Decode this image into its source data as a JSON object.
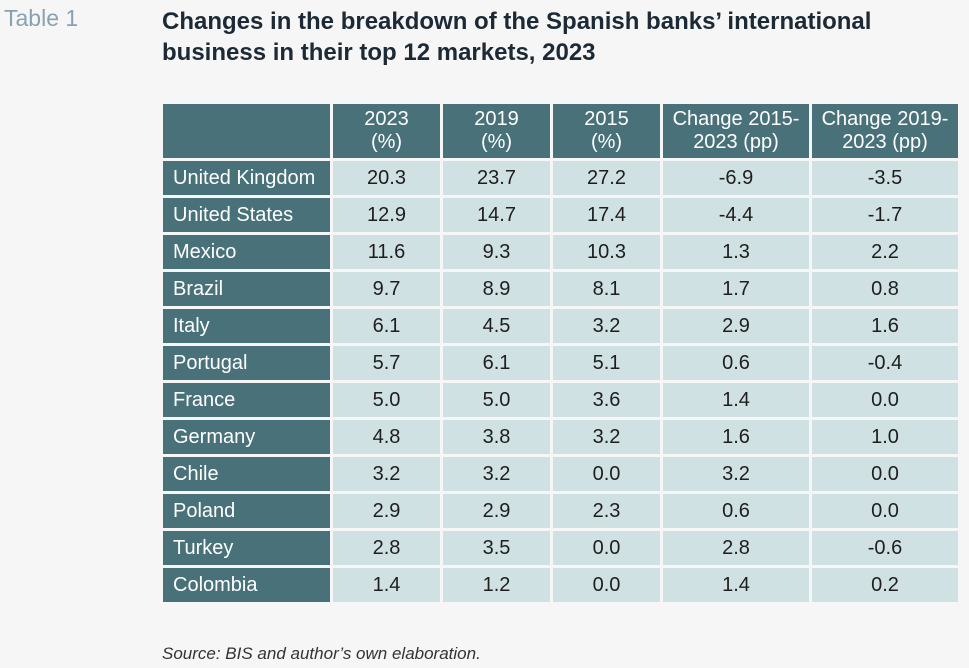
{
  "table_tag": "Table 1",
  "title": "Changes in the breakdown of the Spanish banks’ international business in their top 12 markets, 2023",
  "columns": [
    {
      "line1": "2023",
      "line2": "(%)"
    },
    {
      "line1": "2019",
      "line2": "(%)"
    },
    {
      "line1": "2015",
      "line2": "(%)"
    },
    {
      "line1": "Change 2015-",
      "line2": "2023 (pp)"
    },
    {
      "line1": "Change 2019-",
      "line2": "2023 (pp)"
    }
  ],
  "rows": [
    {
      "country": "United Kingdom",
      "v2023": "20.3",
      "v2019": "23.7",
      "v2015": "27.2",
      "ch1": "-6.9",
      "ch2": "-3.5"
    },
    {
      "country": "United States",
      "v2023": "12.9",
      "v2019": "14.7",
      "v2015": "17.4",
      "ch1": "-4.4",
      "ch2": "-1.7"
    },
    {
      "country": "Mexico",
      "v2023": "11.6",
      "v2019": "9.3",
      "v2015": "10.3",
      "ch1": "1.3",
      "ch2": "2.2"
    },
    {
      "country": "Brazil",
      "v2023": "9.7",
      "v2019": "8.9",
      "v2015": "8.1",
      "ch1": "1.7",
      "ch2": "0.8"
    },
    {
      "country": "Italy",
      "v2023": "6.1",
      "v2019": "4.5",
      "v2015": "3.2",
      "ch1": "2.9",
      "ch2": "1.6"
    },
    {
      "country": "Portugal",
      "v2023": "5.7",
      "v2019": "6.1",
      "v2015": "5.1",
      "ch1": "0.6",
      "ch2": "-0.4"
    },
    {
      "country": "France",
      "v2023": "5.0",
      "v2019": "5.0",
      "v2015": "3.6",
      "ch1": "1.4",
      "ch2": "0.0"
    },
    {
      "country": "Germany",
      "v2023": "4.8",
      "v2019": "3.8",
      "v2015": "3.2",
      "ch1": "1.6",
      "ch2": "1.0"
    },
    {
      "country": "Chile",
      "v2023": "3.2",
      "v2019": "3.2",
      "v2015": "0.0",
      "ch1": "3.2",
      "ch2": "0.0"
    },
    {
      "country": "Poland",
      "v2023": "2.9",
      "v2019": "2.9",
      "v2015": "2.3",
      "ch1": "0.6",
      "ch2": "0.0"
    },
    {
      "country": "Turkey",
      "v2023": "2.8",
      "v2019": "3.5",
      "v2015": "0.0",
      "ch1": "2.8",
      "ch2": "-0.6"
    },
    {
      "country": "Colombia",
      "v2023": "1.4",
      "v2019": "1.2",
      "v2015": "0.0",
      "ch1": "1.4",
      "ch2": "0.2"
    }
  ],
  "source": "Source: BIS and author’s own elaboration.",
  "colors": {
    "header_bg": "#497179",
    "cell_bg": "#d0e1e3",
    "page_bg": "#f6f6f6",
    "title_color": "#1d2a36",
    "tag_color": "#8aa1b1"
  }
}
